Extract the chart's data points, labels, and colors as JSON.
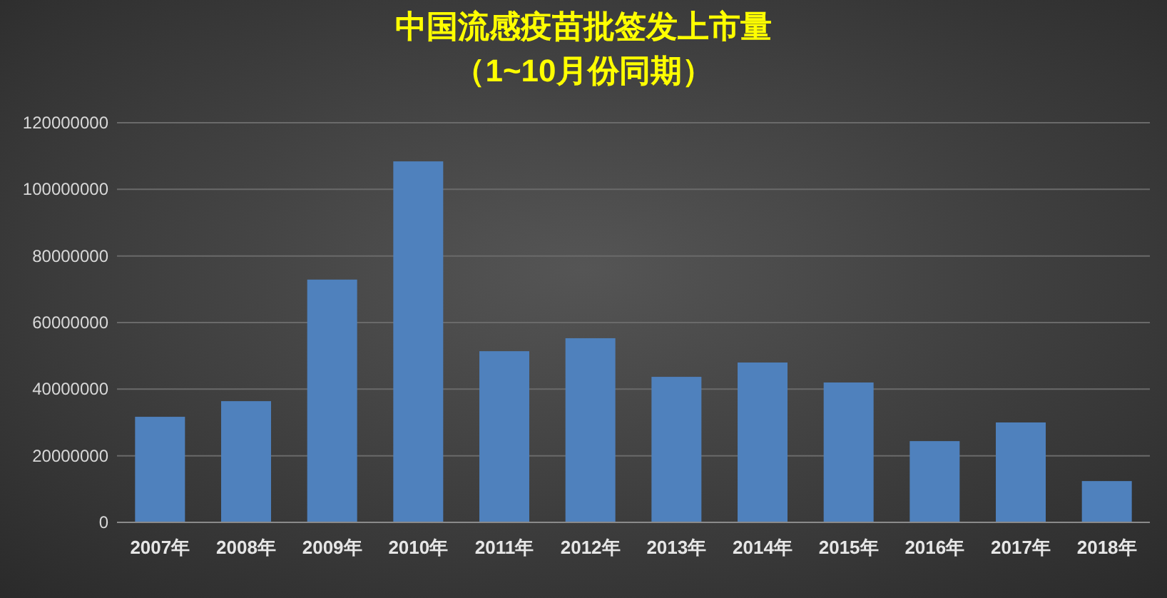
{
  "chart_data": {
    "type": "bar",
    "title": "中国流感疫苗批签发上市量",
    "subtitle": "（1~10月份同期）",
    "categories": [
      "2007年",
      "2008年",
      "2009年",
      "2010年",
      "2011年",
      "2012年",
      "2013年",
      "2014年",
      "2015年",
      "2016年",
      "2017年",
      "2018年"
    ],
    "values": [
      31700000,
      36400000,
      72900000,
      108400000,
      51400000,
      55300000,
      43700000,
      48000000,
      42000000,
      24400000,
      30000000,
      12400000
    ],
    "color": "#4f81bd",
    "ylim": [
      0,
      120000000
    ],
    "yticks": [
      0,
      20000000,
      40000000,
      60000000,
      80000000,
      100000000,
      120000000
    ],
    "grid": "y"
  }
}
